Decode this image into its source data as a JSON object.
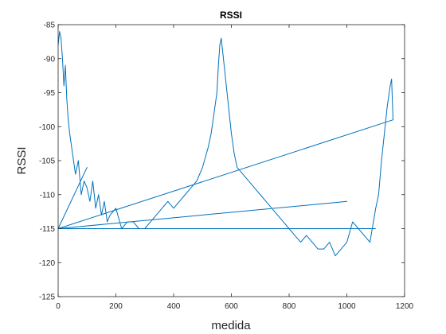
{
  "chart_data": {
    "type": "line",
    "title": "RSSI",
    "xlabel": "medida",
    "ylabel": "RSSI",
    "xlim": [
      0,
      1200
    ],
    "ylim": [
      -125,
      -85
    ],
    "xticks": [
      0,
      200,
      400,
      600,
      800,
      1000,
      1200
    ],
    "yticks": [
      -85,
      -90,
      -95,
      -100,
      -105,
      -110,
      -115,
      -120,
      -125
    ],
    "grid": false,
    "series": [
      {
        "color": "#0072BD",
        "x": [
          0,
          5,
          10,
          15,
          20,
          25,
          30,
          35,
          40,
          50,
          60,
          70,
          80,
          90,
          100,
          110,
          120,
          130,
          140,
          150,
          160,
          170,
          180,
          200,
          220,
          240,
          260,
          280,
          300,
          320,
          340,
          360,
          380,
          400,
          420,
          440,
          460,
          480,
          500,
          520,
          530,
          540,
          550,
          555,
          560,
          565,
          570,
          580,
          590,
          600,
          610,
          620,
          640,
          660,
          680,
          700,
          720,
          740,
          760,
          780,
          800,
          820,
          840,
          860,
          880,
          900,
          920,
          940,
          960,
          980,
          1000,
          1020,
          1040,
          1060,
          1080,
          1100,
          1110,
          1120,
          1130,
          1140,
          1150,
          1155,
          1160,
          0,
          100,
          0,
          1000,
          0,
          1100
        ],
        "y": [
          -88,
          -86,
          -87,
          -90,
          -94,
          -91,
          -96,
          -99,
          -101,
          -104,
          -107,
          -105,
          -110,
          -108,
          -109,
          -111,
          -108,
          -112,
          -110,
          -113,
          -111,
          -114,
          -113,
          -112,
          -115,
          -114,
          -114,
          -115,
          -115,
          -114,
          -113,
          -112,
          -111,
          -112,
          -111,
          -110,
          -109,
          -108,
          -106,
          -103,
          -101,
          -98,
          -95,
          -91,
          -88,
          -87,
          -89,
          -93,
          -97,
          -101,
          -104,
          -106,
          -107,
          -108,
          -109,
          -110,
          -111,
          -112,
          -113,
          -114,
          -115,
          -116,
          -117,
          -116,
          -117,
          -118,
          -118,
          -117,
          -119,
          -118,
          -117,
          -114,
          -115,
          -116,
          -117,
          -112,
          -110,
          -105,
          -101,
          -97,
          -94,
          -93,
          -99,
          -115,
          -106,
          -115,
          -111,
          -115,
          -115
        ]
      }
    ]
  }
}
